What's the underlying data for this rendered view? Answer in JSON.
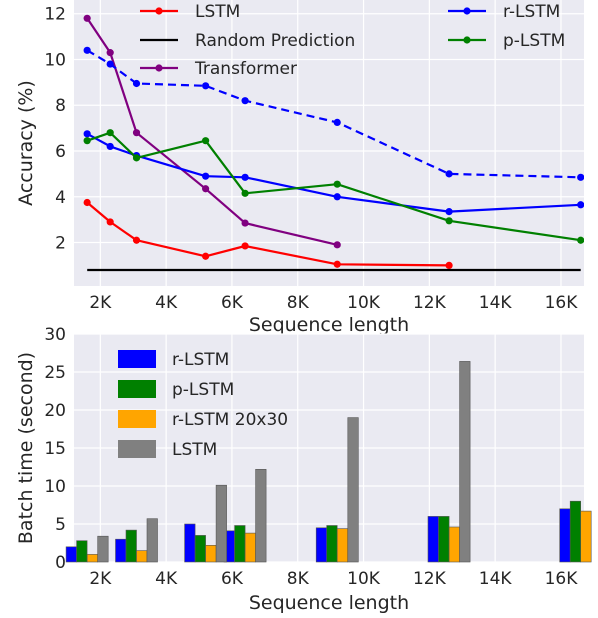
{
  "chart_data": [
    {
      "type": "line",
      "xlabel": "Sequence length",
      "ylabel": "Accuracy (%)",
      "xlim": [
        1200,
        16700
      ],
      "ylim": [
        0.1,
        12.6
      ],
      "xticks": [
        2000,
        4000,
        6000,
        8000,
        10000,
        12000,
        14000,
        16000
      ],
      "xtick_labels": [
        "2K",
        "4K",
        "6K",
        "8K",
        "10K",
        "12K",
        "14K",
        "16K"
      ],
      "yticks": [
        2,
        4,
        6,
        8,
        10,
        12
      ],
      "ytick_labels": [
        "2",
        "4",
        "6",
        "8",
        "10",
        "12"
      ],
      "grid": true,
      "legend_placement": "top",
      "series": [
        {
          "name": "LSTM",
          "color": "#ff0000",
          "style": "solid",
          "marker": "dot",
          "points": [
            [
              1600,
              3.75
            ],
            [
              2300,
              2.9
            ],
            [
              3100,
              2.1
            ],
            [
              5200,
              1.4
            ],
            [
              6400,
              1.85
            ],
            [
              9200,
              1.05
            ],
            [
              12600,
              1.0
            ]
          ]
        },
        {
          "name": "Random Prediction",
          "color": "#000000",
          "style": "solid",
          "marker": "none",
          "points": [
            [
              1600,
              0.8
            ],
            [
              16600,
              0.8
            ]
          ]
        },
        {
          "name": "Transformer",
          "color": "#800080",
          "style": "solid",
          "marker": "dot",
          "points": [
            [
              1600,
              11.8
            ],
            [
              2300,
              10.3
            ],
            [
              3100,
              6.8
            ],
            [
              5200,
              4.35
            ],
            [
              6400,
              2.85
            ],
            [
              9200,
              1.9
            ]
          ]
        },
        {
          "name": "r-LSTM",
          "color": "#0000ff",
          "style": "solid",
          "marker": "dot",
          "points": [
            [
              1600,
              6.75
            ],
            [
              2300,
              6.2
            ],
            [
              3100,
              5.8
            ],
            [
              5200,
              4.9
            ],
            [
              6400,
              4.85
            ],
            [
              9200,
              4.0
            ],
            [
              12600,
              3.35
            ],
            [
              16600,
              3.65
            ]
          ]
        },
        {
          "name": "",
          "color": "#0000ff",
          "style": "dashed",
          "marker": "dot",
          "points": [
            [
              1600,
              10.4
            ],
            [
              2300,
              9.8
            ],
            [
              3100,
              8.95
            ],
            [
              5200,
              8.85
            ],
            [
              6400,
              8.2
            ],
            [
              9200,
              7.25
            ],
            [
              12600,
              5.0
            ],
            [
              16600,
              4.85
            ]
          ]
        },
        {
          "name": "p-LSTM",
          "color": "#008000",
          "style": "solid",
          "marker": "dot",
          "points": [
            [
              1600,
              6.45
            ],
            [
              2300,
              6.8
            ],
            [
              3100,
              5.7
            ],
            [
              5200,
              6.45
            ],
            [
              6400,
              4.15
            ],
            [
              9200,
              4.55
            ],
            [
              12600,
              2.95
            ],
            [
              16600,
              2.1
            ]
          ]
        }
      ],
      "legend": [
        {
          "label": "LSTM",
          "series": 0
        },
        {
          "label": "Random Prediction",
          "series": 1
        },
        {
          "label": "Transformer",
          "series": 2
        },
        {
          "label": "r-LSTM",
          "series": 3
        },
        {
          "label": "p-LSTM",
          "series": 5
        }
      ]
    },
    {
      "type": "bar",
      "xlabel": "Sequence length",
      "ylabel": "Batch time (second)",
      "xlim": [
        1200,
        16700
      ],
      "ylim": [
        0,
        30
      ],
      "xticks": [
        2000,
        4000,
        6000,
        8000,
        10000,
        12000,
        14000,
        16000
      ],
      "xtick_labels": [
        "2K",
        "4K",
        "6K",
        "8K",
        "10K",
        "12K",
        "14K",
        "16K"
      ],
      "yticks": [
        0,
        5,
        10,
        15,
        20,
        25,
        30
      ],
      "ytick_labels": [
        "0",
        "5",
        "10",
        "15",
        "20",
        "25",
        "30"
      ],
      "grid": true,
      "legend_placement": "top-left",
      "bar_width": 320,
      "series": [
        {
          "name": "r-LSTM",
          "color": "#0000ff",
          "x": [
            1600,
            3100,
            5200,
            6400,
            9200,
            12600,
            16600
          ],
          "values": [
            2.0,
            3.0,
            5.0,
            4.1,
            4.5,
            6.0,
            7.0
          ]
        },
        {
          "name": "p-LSTM",
          "color": "#008000",
          "x": [
            1600,
            3100,
            5200,
            6400,
            9200,
            12600,
            16600
          ],
          "values": [
            2.8,
            4.2,
            3.5,
            4.8,
            4.8,
            6.0,
            8.0
          ]
        },
        {
          "name": "r-LSTM 20x30",
          "color": "#ffa500",
          "x": [
            1600,
            3100,
            5200,
            6400,
            9200,
            12600,
            16600
          ],
          "values": [
            1.0,
            1.5,
            2.2,
            3.8,
            4.4,
            4.6,
            6.7
          ]
        },
        {
          "name": "LSTM",
          "color": "#808080",
          "x": [
            1600,
            3100,
            5200,
            6400,
            9200,
            12600
          ],
          "values": [
            3.4,
            5.7,
            10.1,
            12.2,
            19.0,
            26.4
          ]
        }
      ]
    }
  ]
}
